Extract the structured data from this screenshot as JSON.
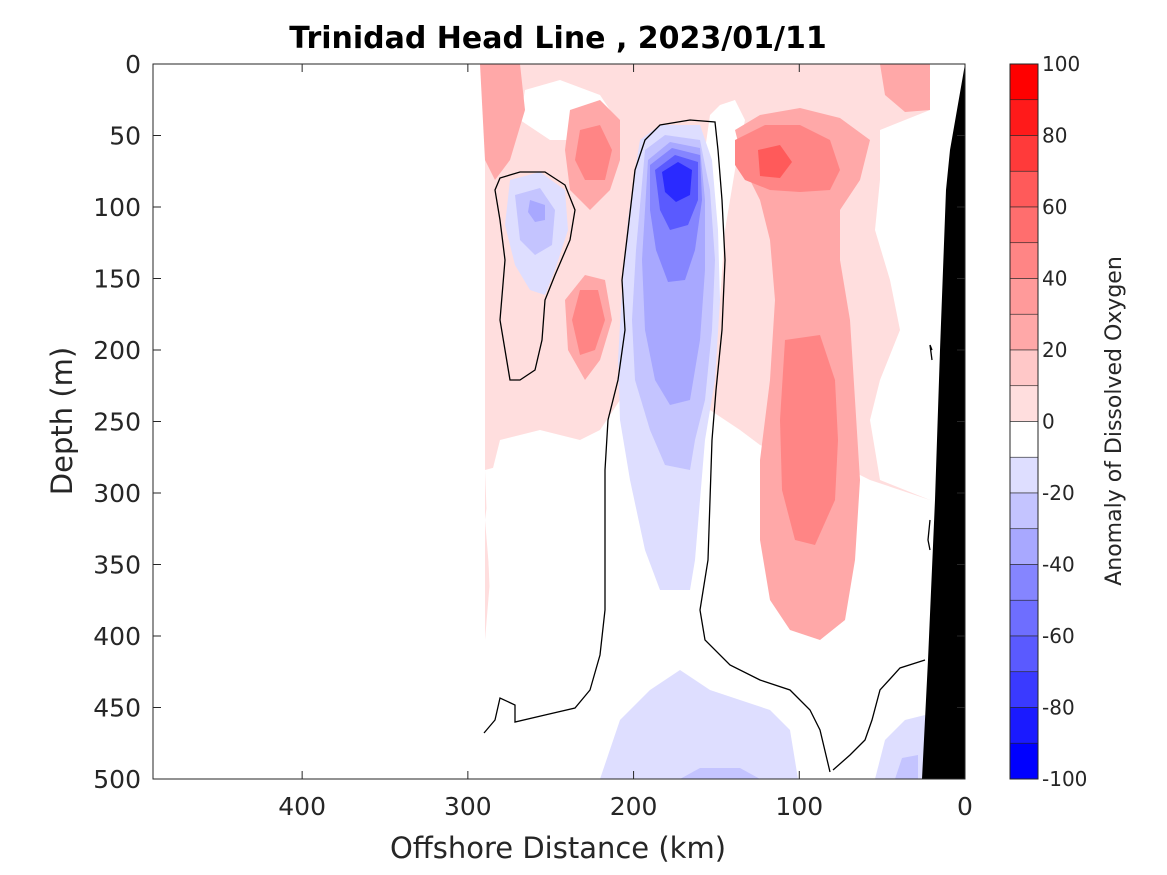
{
  "chart_data": {
    "type": "heatmap",
    "title": "Trinidad Head Line , 2023/01/11",
    "xlabel": "Offshore Distance (km)",
    "ylabel": "Depth (m)",
    "xlim": [
      490,
      0
    ],
    "ylim": [
      0,
      500
    ],
    "x_reversed": true,
    "y_reversed": true,
    "xticks": [
      400,
      300,
      200,
      100,
      0
    ],
    "yticks": [
      0,
      50,
      100,
      150,
      200,
      250,
      300,
      350,
      400,
      450,
      500
    ],
    "colorbar": {
      "label": "Anomaly of Dissolved Oxygen",
      "range": [
        -100,
        100
      ],
      "ticks": [
        100,
        80,
        60,
        40,
        20,
        0,
        -20,
        -40,
        -60,
        -80,
        -100
      ],
      "levels": [
        {
          "from": 90,
          "to": 100,
          "color": "#ff0000"
        },
        {
          "from": 70,
          "to": 90,
          "color": "#ff2a2a"
        },
        {
          "from": 50,
          "to": 70,
          "color": "#ff5a5a"
        },
        {
          "from": 30,
          "to": 50,
          "color": "#ff8585"
        },
        {
          "from": 10,
          "to": 30,
          "color": "#ffa8a8"
        },
        {
          "from": 10,
          "to": 20,
          "color": "#ffdede"
        },
        {
          "from": -10,
          "to": 10,
          "color": "#ffffff"
        },
        {
          "from": -20,
          "to": -10,
          "color": "#dedeff"
        },
        {
          "from": -30,
          "to": -20,
          "color": "#c4c4ff"
        },
        {
          "from": -50,
          "to": -30,
          "color": "#a8a8ff"
        },
        {
          "from": -70,
          "to": -50,
          "color": "#8585ff"
        },
        {
          "from": -80,
          "to": -70,
          "color": "#5a5aff"
        },
        {
          "from": -90,
          "to": -80,
          "color": "#2a2aff"
        },
        {
          "from": -100,
          "to": -90,
          "color": "#0000ff"
        }
      ]
    },
    "data_extent_km": [
      290,
      0
    ],
    "features": [
      {
        "name": "strong-negative-core",
        "x": 172,
        "y": 85,
        "value": -90
      },
      {
        "name": "negative-lobe",
        "x": 255,
        "y": 110,
        "value": -30
      },
      {
        "name": "positive-core",
        "x": 110,
        "y": 72,
        "value": 60
      },
      {
        "name": "positive-column",
        "x": 95,
        "y": 290,
        "value": 40
      },
      {
        "name": "positive-small",
        "x": 225,
        "y": 190,
        "value": 40
      },
      {
        "name": "positive-near-surface",
        "x": 225,
        "y": 70,
        "value": 30
      }
    ],
    "zero_contour": true,
    "bathymetry_color": "#000000"
  }
}
